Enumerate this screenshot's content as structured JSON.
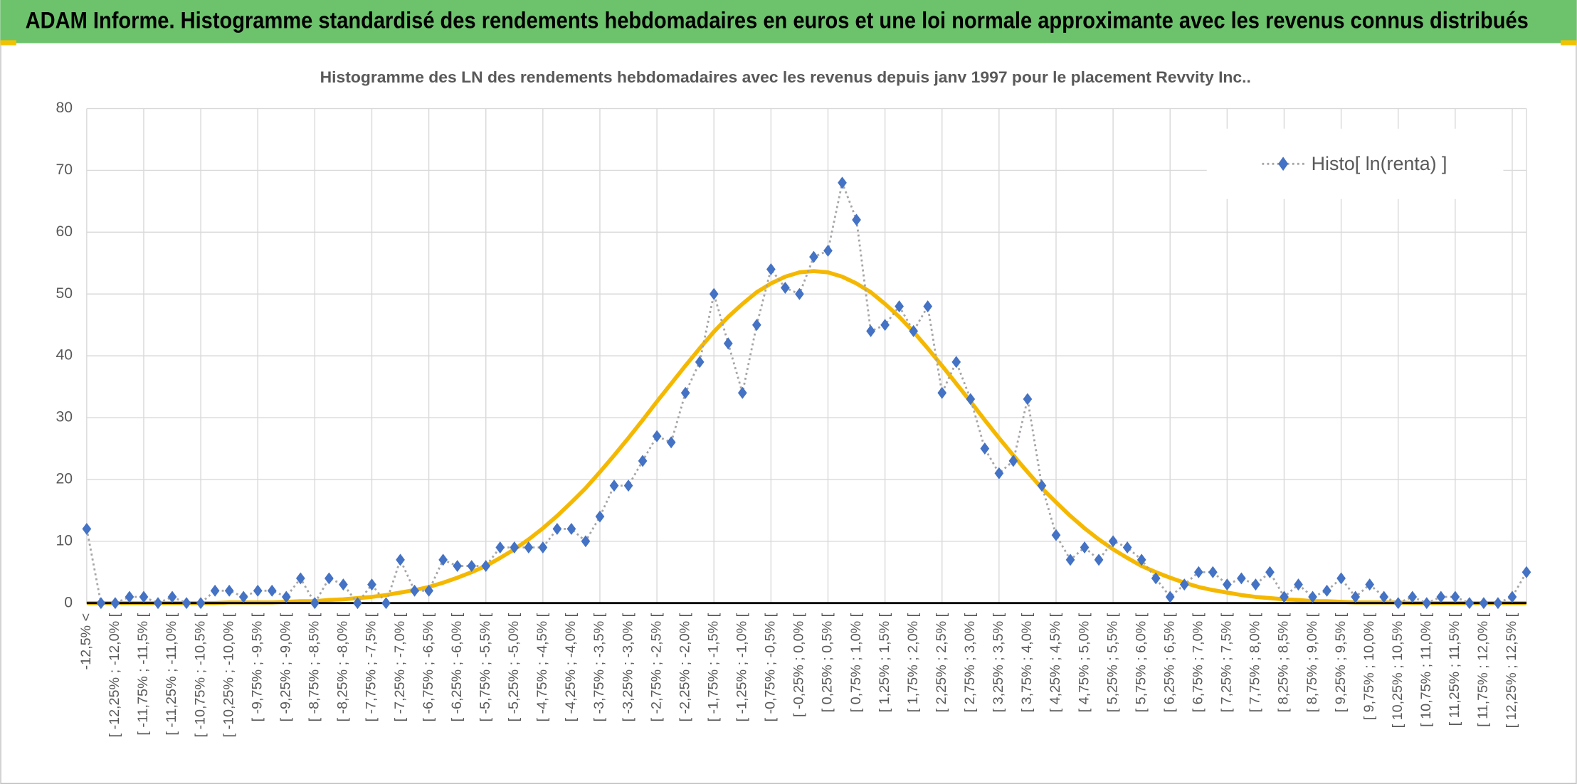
{
  "header": {
    "title": "ADAM Informe. Histogramme standardisé des rendements hebdomadaires en euros et une loi normale approximante avec les revenus connus distribués"
  },
  "chart_data": {
    "type": "line",
    "title": "Histogramme des LN des rendements hebdomadaires avec les revenus depuis janv 1997 pour le placement Revvity Inc..",
    "categories": [
      "-12,5% <",
      null,
      "[ -12,25% ; -12,0% [",
      null,
      "[ -11,75% ; -11,5% [",
      null,
      "[ -11,25% ; -11,0% [",
      null,
      "[ -10,75% ; -10,5% [",
      null,
      "[ -10,25% ; -10,0% [",
      null,
      "[ -9,75% ; -9,5% [",
      null,
      "[ -9,25% ; -9,0% [",
      null,
      "[ -8,75% ; -8,5% [",
      null,
      "[ -8,25% ; -8,0% [",
      null,
      "[ -7,75% ; -7,5% [",
      null,
      "[ -7,25% ; -7,0% [",
      null,
      "[ -6,75% ; -6,5% [",
      null,
      "[ -6,25% ; -6,0% [",
      null,
      "[ -5,75% ; -5,5% [",
      null,
      "[ -5,25% ; -5,0% [",
      null,
      "[ -4,75% ; -4,5% [",
      null,
      "[ -4,25% ; -4,0% [",
      null,
      "[ -3,75% ; -3,5% [",
      null,
      "[ -3,25% ; -3,0% [",
      null,
      "[ -2,75% ; -2,5% [",
      null,
      "[ -2,25% ; -2,0% [",
      null,
      "[ -1,75% ; -1,5% [",
      null,
      "[ -1,25% ; -1,0% [",
      null,
      "[ -0,75% ; -0,5% [",
      null,
      "[ -0,25% ; 0,0% [",
      null,
      "[ 0,25% ; 0,5% [",
      null,
      "[ 0,75% ; 1,0% [",
      null,
      "[ 1,25% ; 1,5% [",
      null,
      "[ 1,75% ; 2,0% [",
      null,
      "[ 2,25% ; 2,5% [",
      null,
      "[ 2,75% ; 3,0% [",
      null,
      "[ 3,25% ; 3,5% [",
      null,
      "[ 3,75% ; 4,0% [",
      null,
      "[ 4,25% ; 4,5% [",
      null,
      "[ 4,75% ; 5,0% [",
      null,
      "[ 5,25% ; 5,5% [",
      null,
      "[ 5,75% ; 6,0% [",
      null,
      "[ 6,25% ; 6,5% [",
      null,
      "[ 6,75% ; 7,0% [",
      null,
      "[ 7,25% ; 7,5% [",
      null,
      "[ 7,75% ; 8,0% [",
      null,
      "[ 8,25% ; 8,5% [",
      null,
      "[ 8,75% ; 9,0% [",
      null,
      "[ 9,25% ; 9,5% [",
      null,
      "[ 9,75% ; 10,0% [",
      null,
      "[ 10,25% ; 10,5% [",
      null,
      "[ 10,75% ; 11,0% [",
      null,
      "[ 11,25% ; 11,5% [",
      null,
      "[ 11,75% ; 12,0% [",
      null,
      "[ 12,25% ; 12,5% [",
      null
    ],
    "series": [
      {
        "name": "Histo[ ln(renta) ]",
        "color": "#4472c4",
        "values": [
          12,
          0,
          0,
          1,
          1,
          0,
          1,
          0,
          0,
          2,
          2,
          1,
          2,
          2,
          1,
          4,
          0,
          4,
          3,
          0,
          3,
          0,
          7,
          2,
          2,
          7,
          6,
          6,
          6,
          9,
          9,
          9,
          9,
          12,
          12,
          10,
          14,
          19,
          19,
          23,
          27,
          26,
          34,
          39,
          50,
          42,
          34,
          45,
          54,
          51,
          50,
          56,
          57,
          68,
          62,
          44,
          45,
          48,
          44,
          48,
          34,
          39,
          33,
          25,
          21,
          23,
          33,
          19,
          11,
          7,
          9,
          7,
          10,
          9,
          7,
          4,
          1,
          3,
          5,
          5,
          3,
          4,
          3,
          5,
          1,
          3,
          1,
          2,
          4,
          1,
          3,
          1,
          0,
          1,
          0,
          1,
          1,
          0,
          0,
          0,
          1,
          5
        ]
      },
      {
        "color": "#f5b800",
        "values": [
          0,
          0,
          0,
          0,
          0,
          0,
          0,
          0,
          0,
          0,
          0.1,
          0.1,
          0.1,
          0.1,
          0.2,
          0.3,
          0.3,
          0.5,
          0.6,
          0.8,
          1.0,
          1.3,
          1.7,
          2.1,
          2.6,
          3.3,
          4.1,
          5.0,
          6.0,
          7.3,
          8.7,
          10.3,
          12.1,
          14.1,
          16.3,
          18.6,
          21.2,
          23.9,
          26.7,
          29.6,
          32.6,
          35.5,
          38.4,
          41.2,
          43.9,
          46.3,
          48.4,
          50.3,
          51.7,
          52.8,
          53.5,
          53.7,
          53.5,
          52.8,
          51.7,
          50.3,
          48.4,
          46.3,
          43.9,
          41.2,
          38.4,
          35.5,
          32.6,
          29.6,
          26.7,
          23.9,
          21.2,
          18.6,
          16.3,
          14.1,
          12.1,
          10.3,
          8.7,
          7.3,
          6.0,
          5.0,
          4.1,
          3.3,
          2.6,
          2.1,
          1.7,
          1.3,
          1.0,
          0.8,
          0.6,
          0.5,
          0.3,
          0.3,
          0.2,
          0.1,
          0.1,
          0.1,
          0.1,
          0,
          0,
          0,
          0,
          0,
          0,
          0,
          0,
          0
        ]
      }
    ],
    "ylim": [
      0,
      80
    ],
    "yticks": [
      0,
      10,
      20,
      30,
      40,
      50,
      60,
      70,
      80
    ],
    "grid": true,
    "legend": "top-right"
  }
}
